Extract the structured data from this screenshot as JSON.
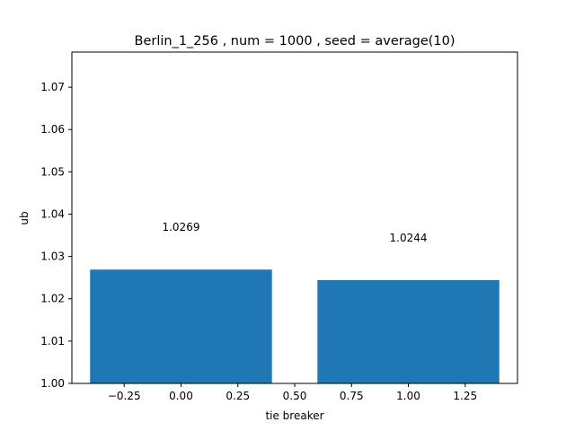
{
  "chart_data": {
    "type": "bar",
    "title": "Berlin_1_256 , num = 1000 , seed = average(10)",
    "xlabel": "tie breaker",
    "ylabel": "ub",
    "x": [
      0,
      1
    ],
    "values": [
      1.0269,
      1.0244
    ],
    "bar_width": 0.8,
    "data_labels": [
      "1.0269",
      "1.0244"
    ],
    "data_label_offset": 0.01,
    "xlim": [
      -0.48,
      1.48
    ],
    "ylim": [
      1.0,
      1.0783
    ],
    "xticks": [
      -0.25,
      0.0,
      0.25,
      0.5,
      0.75,
      1.0,
      1.25
    ],
    "xtick_labels": [
      "−0.25",
      "0.00",
      "0.25",
      "0.50",
      "0.75",
      "1.00",
      "1.25"
    ],
    "yticks": [
      1.0,
      1.01,
      1.02,
      1.03,
      1.04,
      1.05,
      1.06,
      1.07
    ],
    "ytick_labels": [
      "1.00",
      "1.01",
      "1.02",
      "1.03",
      "1.04",
      "1.05",
      "1.06",
      "1.07"
    ],
    "grid": false,
    "legend": "none",
    "bar_color": "#1f77b4"
  }
}
